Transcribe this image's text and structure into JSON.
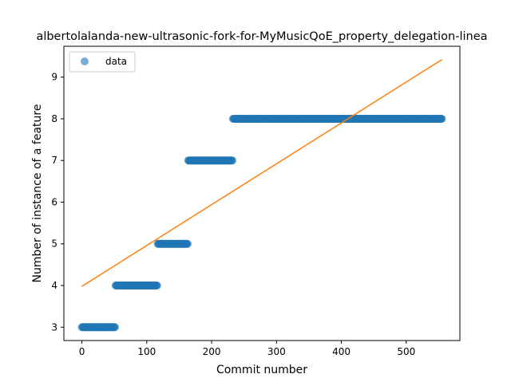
{
  "chart_data": {
    "type": "scatter",
    "title": "albertolalanda-new-ultrasonic-fork-for-MyMusicQoE_property_delegation-linea",
    "xlabel": "Commit number",
    "ylabel": "Number of instance of a feature",
    "xlim": [
      -27.75,
      582.75
    ],
    "ylim": [
      2.68,
      9.74
    ],
    "xticks": [
      0,
      100,
      200,
      300,
      400,
      500
    ],
    "yticks": [
      3,
      4,
      5,
      6,
      7,
      8,
      9
    ],
    "grid": false,
    "legend": {
      "position": "top-left",
      "entries": [
        "data"
      ]
    },
    "colors": {
      "points": "#1f77b4",
      "fit_line": "#ff7f0e"
    },
    "series": [
      {
        "name": "data",
        "kind": "points",
        "segments": [
          {
            "x_start": 0,
            "x_end": 52,
            "y": 3
          },
          {
            "x_start": 52,
            "x_end": 117,
            "y": 4
          },
          {
            "x_start": 117,
            "x_end": 164,
            "y": 5
          },
          {
            "x_start": 164,
            "x_end": 233,
            "y": 7
          },
          {
            "x_start": 233,
            "x_end": 555,
            "y": 8
          }
        ]
      },
      {
        "kind": "line",
        "x": [
          0,
          555
        ],
        "y": [
          3.98,
          9.42
        ]
      }
    ]
  }
}
